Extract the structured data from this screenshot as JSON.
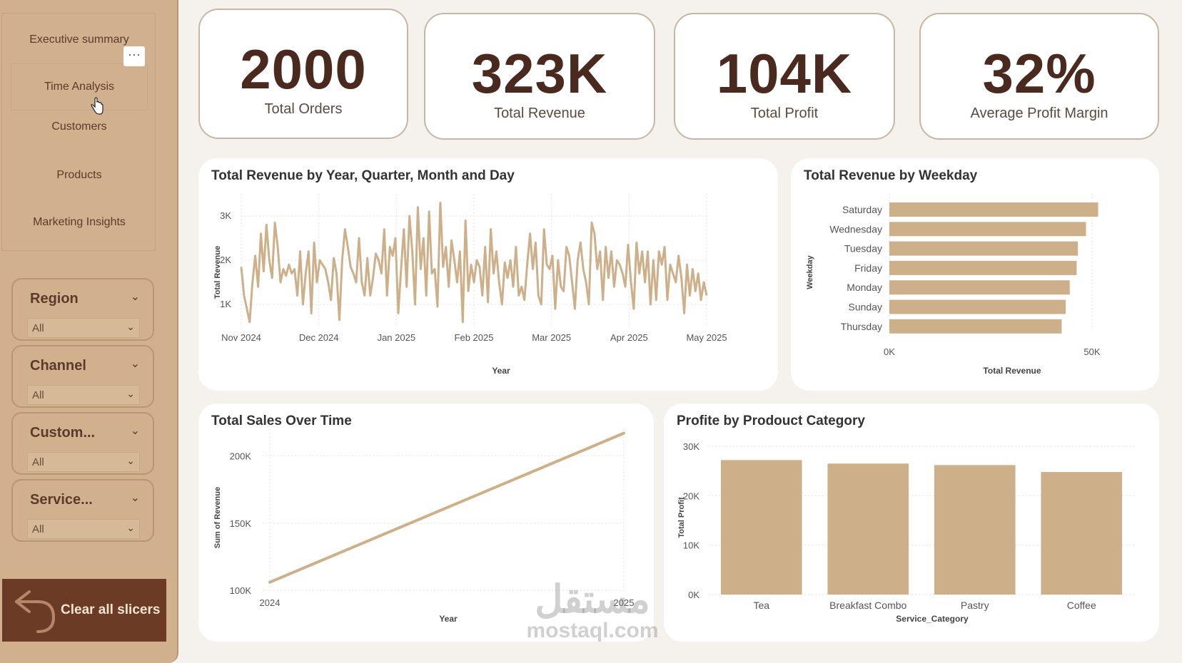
{
  "nav": {
    "items": [
      "Executive summary",
      "Time Analysis",
      "Customers",
      "Products",
      "Marketing Insights"
    ],
    "more": "···"
  },
  "slicers": [
    {
      "title": "Region",
      "value": "All"
    },
    {
      "title": "Channel",
      "value": "All"
    },
    {
      "title": "Custom...",
      "value": "All"
    },
    {
      "title": "Service...",
      "value": "All"
    }
  ],
  "clear_button": "Clear all slicers",
  "kpis": [
    {
      "value": "2000",
      "label": "Total Orders"
    },
    {
      "value": "323K",
      "label": "Total Revenue"
    },
    {
      "value": "104K",
      "label": "Total Profit"
    },
    {
      "value": "32%",
      "label": "Average Profit Margin"
    }
  ],
  "colors": {
    "accent": "#d1b18d",
    "dark": "#6b3b26",
    "bar": "#cdb08a"
  },
  "watermark": {
    "arabic": "مستقل",
    "latin": "mostaql.com"
  },
  "chart_data": [
    {
      "type": "line",
      "title": "Total Revenue by Year, Quarter, Month and Day",
      "xlabel": "Year",
      "ylabel": "Total Revenue",
      "x_ticks": [
        "Nov 2024",
        "Dec 2024",
        "Jan 2025",
        "Feb 2025",
        "Mar 2025",
        "Apr 2025",
        "May 2025"
      ],
      "y_ticks": [
        "1K",
        "2K",
        "3K"
      ],
      "ylim": [
        500,
        3500
      ],
      "x_start": "2024-11-01",
      "x_end": "2025-05-01",
      "values": [
        1850,
        1200,
        900,
        600,
        1500,
        2100,
        1400,
        2600,
        1750,
        2800,
        2000,
        1600,
        2850,
        2300,
        1500,
        1800,
        1650,
        1900,
        1700,
        1800,
        1200,
        2200,
        1000,
        1700,
        2200,
        800,
        2400,
        1500,
        2000,
        1900,
        1800,
        1500,
        1100,
        2050,
        1700,
        650,
        2000,
        2700,
        2300,
        1850,
        1700,
        1500,
        2500,
        1500,
        1200,
        2050,
        1200,
        1600,
        2150,
        2000,
        1700,
        2700,
        1200,
        2300,
        2100,
        2500,
        800,
        1800,
        2700,
        1400,
        3000,
        2200,
        1000,
        3200,
        1800,
        2500,
        1200,
        3100,
        1700,
        1800,
        950,
        3300,
        1850,
        2300,
        1400,
        2450,
        2000,
        1500,
        2200,
        600,
        2900,
        1300,
        1900,
        1500,
        2000,
        1850,
        1200,
        2300,
        1050,
        2700,
        1700,
        2200,
        1500,
        1000,
        1950,
        1600,
        2000,
        1400,
        2300,
        1200,
        1400,
        1100,
        1900,
        2600,
        1800,
        2400,
        1200,
        1000,
        2700,
        1900,
        1800,
        2100,
        900,
        2000,
        1400,
        1300,
        2300,
        2100,
        1500,
        900,
        2000,
        2400,
        1800,
        1500,
        1000,
        2850,
        2600,
        1800,
        2200,
        1100,
        2300,
        1600,
        2200,
        1400,
        2000,
        1900,
        1700,
        1400,
        2350,
        1500,
        900,
        2400,
        1700,
        2200,
        1500,
        2200,
        1000,
        2000,
        1100,
        2200,
        1900,
        2300,
        1100,
        1900,
        1700,
        1500,
        2100,
        1600,
        800,
        1900,
        1200,
        1800,
        1300,
        1700,
        1100,
        1500,
        1200
      ]
    },
    {
      "type": "bar",
      "orientation": "horizontal",
      "title": "Total Revenue by Weekday",
      "xlabel": "Total Revenue",
      "ylabel": "Weekday",
      "categories": [
        "Saturday",
        "Wednesday",
        "Tuesday",
        "Friday",
        "Monday",
        "Sunday",
        "Thursday"
      ],
      "values": [
        51500,
        48500,
        46500,
        46200,
        44500,
        43500,
        42500
      ],
      "x_ticks": [
        "0K",
        "50K"
      ],
      "xlim": [
        0,
        50000
      ]
    },
    {
      "type": "line",
      "title": "Total Sales Over Time",
      "xlabel": "Year",
      "ylabel": "Sum of Revenue",
      "categories": [
        "2024",
        "2025"
      ],
      "values": [
        106000,
        217000
      ],
      "y_ticks": [
        "100K",
        "150K",
        "200K"
      ],
      "ylim": [
        100000,
        220000
      ]
    },
    {
      "type": "bar",
      "title": "Profite by Prodouct Category",
      "xlabel": "Service_Category",
      "ylabel": "Total Profit",
      "categories": [
        "Tea",
        "Breakfast Combo",
        "Pastry",
        "Coffee"
      ],
      "values": [
        27200,
        26500,
        26200,
        24800
      ],
      "y_ticks": [
        "0K",
        "10K",
        "20K",
        "30K"
      ],
      "ylim": [
        0,
        30000
      ]
    }
  ]
}
